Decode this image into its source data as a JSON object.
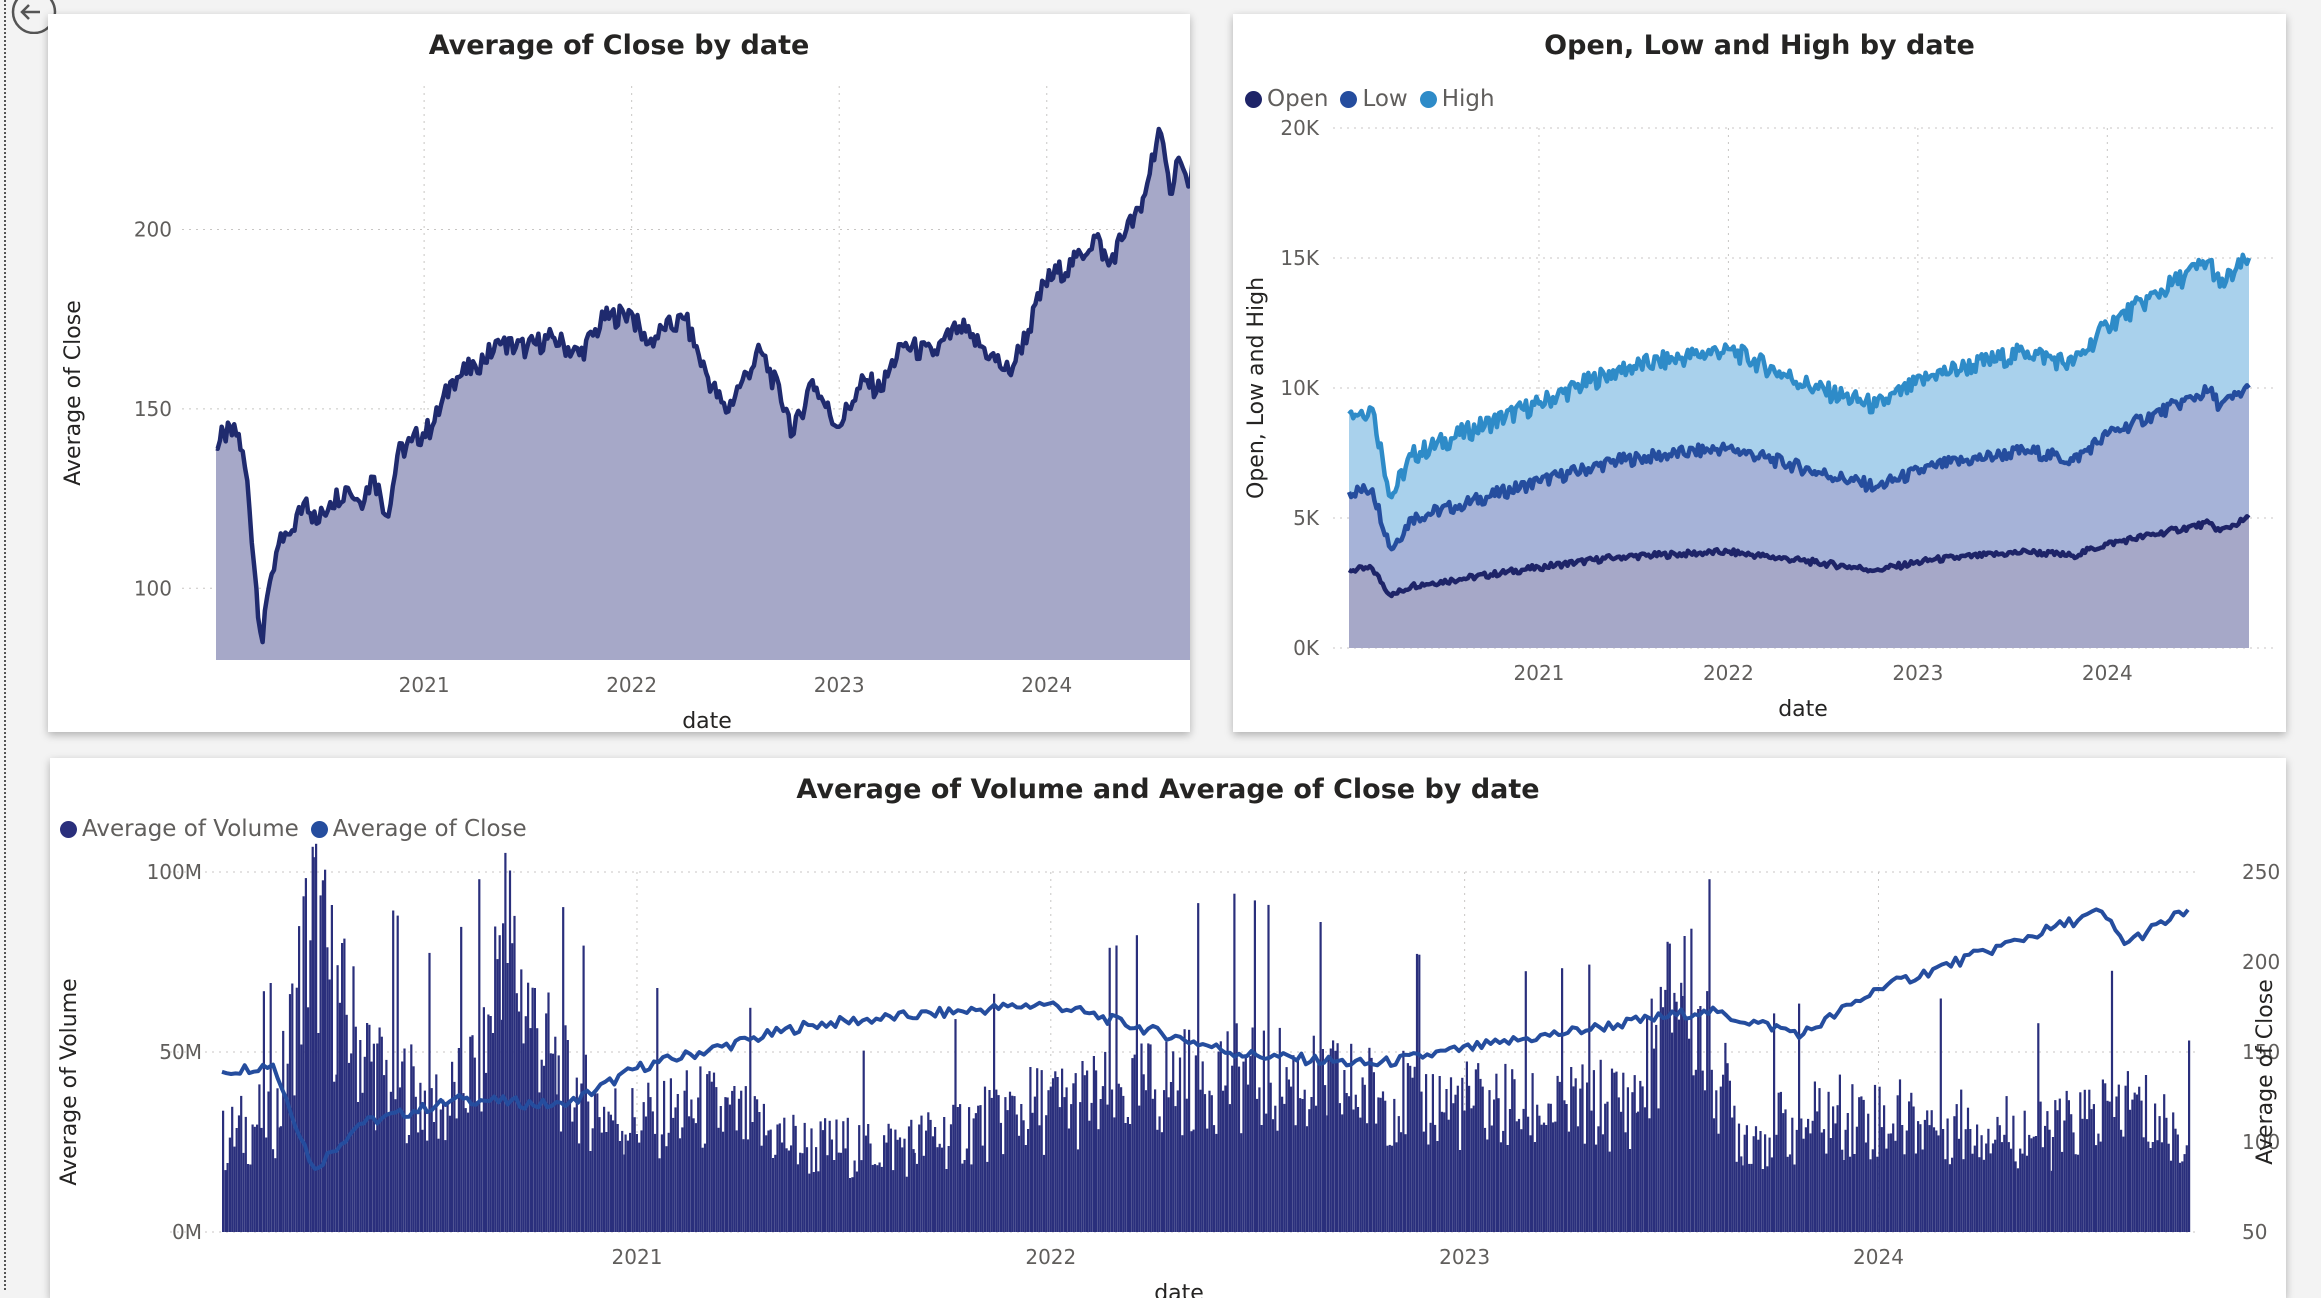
{
  "colors": {
    "close": "#1f2a6e",
    "close_fill": "#a6a8c8",
    "open": "#1e2468",
    "low": "#254d9e",
    "high": "#2e8bc8",
    "volume": "#2a2f7c",
    "close_line": "#254d9e",
    "grid": "#c8c6c4"
  },
  "chart_data": [
    {
      "type": "area",
      "title": "Average of Close by date",
      "xlabel": "date",
      "ylabel": "Average of Close",
      "xlim": [
        "2020-01-01",
        "2024-09-30"
      ],
      "ylim": [
        80,
        240
      ],
      "yticks": [
        100,
        150,
        200
      ],
      "xticks": [
        "2021",
        "2022",
        "2023",
        "2024"
      ],
      "grid": true,
      "series": [
        {
          "values": [
            [
              "2020-01-01",
              139
            ],
            [
              "2020-01-15",
              143
            ],
            [
              "2020-02-10",
              143
            ],
            [
              "2020-02-25",
              130
            ],
            [
              "2020-03-12",
              100
            ],
            [
              "2020-03-23",
              85
            ],
            [
              "2020-04-05",
              102
            ],
            [
              "2020-04-20",
              112
            ],
            [
              "2020-05-10",
              115
            ],
            [
              "2020-06-08",
              125
            ],
            [
              "2020-06-26",
              118
            ],
            [
              "2020-07-20",
              124
            ],
            [
              "2020-08-20",
              128
            ],
            [
              "2020-09-10",
              124
            ],
            [
              "2020-10-05",
              131
            ],
            [
              "2020-10-30",
              120
            ],
            [
              "2020-11-15",
              137
            ],
            [
              "2020-12-10",
              141
            ],
            [
              "2021-01-15",
              145
            ],
            [
              "2021-02-20",
              158
            ],
            [
              "2021-04-01",
              162
            ],
            [
              "2021-05-15",
              168
            ],
            [
              "2021-07-01",
              167
            ],
            [
              "2021-08-15",
              170
            ],
            [
              "2021-10-01",
              165
            ],
            [
              "2021-11-15",
              175
            ],
            [
              "2021-12-31",
              177
            ],
            [
              "2022-01-27",
              168
            ],
            [
              "2022-03-01",
              172
            ],
            [
              "2022-04-05",
              175
            ],
            [
              "2022-05-12",
              160
            ],
            [
              "2022-06-16",
              149
            ],
            [
              "2022-07-15",
              158
            ],
            [
              "2022-08-16",
              166
            ],
            [
              "2022-09-30",
              150
            ],
            [
              "2022-10-13",
              143
            ],
            [
              "2022-11-15",
              158
            ],
            [
              "2022-12-28",
              145
            ],
            [
              "2023-01-25",
              152
            ],
            [
              "2023-02-15",
              158
            ],
            [
              "2023-03-15",
              155
            ],
            [
              "2023-04-20",
              168
            ],
            [
              "2023-06-15",
              165
            ],
            [
              "2023-07-31",
              173
            ],
            [
              "2023-08-20",
              170
            ],
            [
              "2023-09-25",
              165
            ],
            [
              "2023-10-27",
              160
            ],
            [
              "2023-11-30",
              172
            ],
            [
              "2023-12-29",
              185
            ],
            [
              "2024-01-20",
              188
            ],
            [
              "2024-02-15",
              190
            ],
            [
              "2024-03-28",
              198
            ],
            [
              "2024-04-19",
              190
            ],
            [
              "2024-05-20",
              200
            ],
            [
              "2024-06-15",
              205
            ],
            [
              "2024-07-16",
              228
            ],
            [
              "2024-08-05",
              210
            ],
            [
              "2024-08-20",
              220
            ],
            [
              "2024-09-06",
              212
            ],
            [
              "2024-09-30",
              229
            ]
          ]
        }
      ]
    },
    {
      "type": "area",
      "title": "Open, Low and High by date",
      "xlabel": "date",
      "ylabel": "Open, Low and High",
      "xlim": [
        "2020-01-01",
        "2024-09-30"
      ],
      "ylim": [
        0,
        20000
      ],
      "yticks": [
        "0K",
        "5K",
        "10K",
        "15K",
        "20K"
      ],
      "xticks": [
        "2021",
        "2022",
        "2023",
        "2024"
      ],
      "legend": "top-left",
      "grid": true,
      "series": [
        {
          "name": "Open",
          "values": [
            [
              "2020-01-01",
              3000
            ],
            [
              "2020-02-15",
              3050
            ],
            [
              "2020-03-23",
              2000
            ],
            [
              "2020-05-01",
              2400
            ],
            [
              "2020-08-01",
              2650
            ],
            [
              "2021-01-01",
              3100
            ],
            [
              "2021-06-01",
              3500
            ],
            [
              "2021-12-31",
              3700
            ],
            [
              "2022-06-16",
              3300
            ],
            [
              "2022-10-13",
              3000
            ],
            [
              "2023-02-01",
              3400
            ],
            [
              "2023-07-31",
              3700
            ],
            [
              "2023-10-27",
              3550
            ],
            [
              "2024-01-01",
              4000
            ],
            [
              "2024-07-16",
              4800
            ],
            [
              "2024-08-05",
              4500
            ],
            [
              "2024-09-30",
              5000
            ]
          ]
        },
        {
          "name": "Low",
          "values": [
            [
              "2020-01-01",
              6000
            ],
            [
              "2020-02-15",
              6100
            ],
            [
              "2020-03-23",
              3800
            ],
            [
              "2020-05-01",
              5000
            ],
            [
              "2020-08-01",
              5500
            ],
            [
              "2021-01-01",
              6400
            ],
            [
              "2021-06-01",
              7200
            ],
            [
              "2021-12-31",
              7700
            ],
            [
              "2022-06-16",
              6800
            ],
            [
              "2022-10-13",
              6200
            ],
            [
              "2023-02-01",
              7000
            ],
            [
              "2023-07-31",
              7600
            ],
            [
              "2023-10-27",
              7200
            ],
            [
              "2024-01-01",
              8200
            ],
            [
              "2024-07-16",
              9900
            ],
            [
              "2024-08-05",
              9300
            ],
            [
              "2024-09-30",
              10000
            ]
          ]
        },
        {
          "name": "High",
          "values": [
            [
              "2020-01-01",
              9000
            ],
            [
              "2020-02-15",
              9200
            ],
            [
              "2020-03-23",
              5800
            ],
            [
              "2020-05-01",
              7400
            ],
            [
              "2020-08-01",
              8200
            ],
            [
              "2021-01-01",
              9400
            ],
            [
              "2021-06-01",
              10700
            ],
            [
              "2021-12-31",
              11500
            ],
            [
              "2022-06-16",
              10000
            ],
            [
              "2022-10-13",
              9300
            ],
            [
              "2023-02-01",
              10500
            ],
            [
              "2023-07-31",
              11400
            ],
            [
              "2023-10-27",
              10900
            ],
            [
              "2024-01-01",
              12400
            ],
            [
              "2024-07-16",
              14900
            ],
            [
              "2024-08-05",
              13900
            ],
            [
              "2024-09-30",
              15000
            ]
          ]
        }
      ]
    },
    {
      "type": "bar",
      "combo_line": true,
      "title": "Average of Volume and Average of Close by date",
      "xlabel": "date",
      "ylabel": "Average of Volume",
      "y2label": "Average of Close",
      "xlim": [
        "2020-01-01",
        "2024-09-30"
      ],
      "ylim": [
        0,
        100000000
      ],
      "y2lim": [
        50,
        250
      ],
      "yticks": [
        "0M",
        "50M",
        "100M"
      ],
      "y2ticks": [
        50,
        100,
        150,
        200,
        250
      ],
      "xticks": [
        "2021",
        "2022",
        "2023",
        "2024"
      ],
      "legend": "top-left",
      "grid": true,
      "series": [
        {
          "name": "Average of Volume",
          "type": "bar",
          "values": [
            [
              "2020-01-01",
              28000000
            ],
            [
              "2020-02-20",
              38000000
            ],
            [
              "2020-03-10",
              80000000
            ],
            [
              "2020-03-20",
              98000000
            ],
            [
              "2020-04-10",
              72000000
            ],
            [
              "2020-05-15",
              50000000
            ],
            [
              "2020-06-15",
              44000000
            ],
            [
              "2020-07-15",
              38000000
            ],
            [
              "2020-08-20",
              55000000
            ],
            [
              "2020-09-03",
              98000000
            ],
            [
              "2020-09-20",
              75000000
            ],
            [
              "2020-10-20",
              50000000
            ],
            [
              "2020-11-20",
              40000000
            ],
            [
              "2020-12-20",
              34000000
            ],
            [
              "2021-03-01",
              38000000
            ],
            [
              "2021-06-01",
              26000000
            ],
            [
              "2021-09-01",
              27000000
            ],
            [
              "2021-12-01",
              37000000
            ],
            [
              "2022-03-01",
              42000000
            ],
            [
              "2022-06-01",
              50000000
            ],
            [
              "2022-09-01",
              45000000
            ],
            [
              "2022-12-01",
              40000000
            ],
            [
              "2023-03-01",
              38000000
            ],
            [
              "2023-06-01",
              40000000
            ],
            [
              "2023-07-10",
              80000000
            ],
            [
              "2023-09-01",
              30000000
            ],
            [
              "2023-12-01",
              36000000
            ],
            [
              "2024-03-01",
              34000000
            ],
            [
              "2024-06-01",
              30000000
            ],
            [
              "2024-08-05",
              40000000
            ],
            [
              "2024-09-30",
              28000000
            ]
          ]
        },
        {
          "name": "Average of Close",
          "type": "line",
          "values": [
            [
              "2020-01-01",
              139
            ],
            [
              "2020-02-15",
              143
            ],
            [
              "2020-03-23",
              85
            ],
            [
              "2020-05-01",
              110
            ],
            [
              "2020-08-01",
              124
            ],
            [
              "2020-10-30",
              120
            ],
            [
              "2021-01-01",
              141
            ],
            [
              "2021-06-01",
              165
            ],
            [
              "2021-12-31",
              177
            ],
            [
              "2022-06-16",
              149
            ],
            [
              "2022-10-13",
              143
            ],
            [
              "2023-02-01",
              155
            ],
            [
              "2023-07-31",
              173
            ],
            [
              "2023-10-27",
              160
            ],
            [
              "2024-01-01",
              185
            ],
            [
              "2024-07-16",
              228
            ],
            [
              "2024-08-05",
              210
            ],
            [
              "2024-09-30",
              229
            ]
          ]
        }
      ]
    }
  ]
}
